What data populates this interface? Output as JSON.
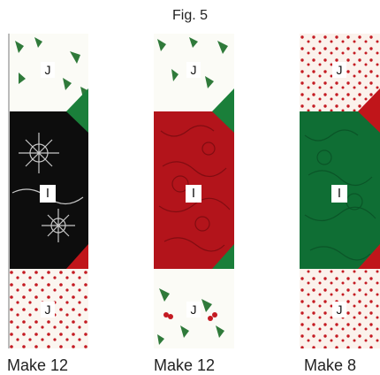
{
  "figure": {
    "title": "Fig. 5"
  },
  "strips": [
    {
      "top_label": "J",
      "center_label": "I",
      "bottom_label": "J",
      "caption": "Make 12",
      "colors": {
        "end_fabric": "#fbf6f0",
        "center_fabric": "#0d0d0d",
        "corner_top": "#1a7f3a",
        "corner_bottom": "#c0151a"
      }
    },
    {
      "top_label": "J",
      "center_label": "I",
      "bottom_label": "J",
      "caption": "Make 12",
      "colors": {
        "end_fabric": "#fbfbf6",
        "center_fabric": "#b3141b",
        "corner_top": "#1a7f3a",
        "corner_bottom": "#1a7f3a"
      }
    },
    {
      "top_label": "J",
      "center_label": "I",
      "bottom_label": "J",
      "caption": "Make 8",
      "colors": {
        "end_fabric": "#fbf2ec",
        "center_fabric": "#0f6e34",
        "corner_top": "#c0151a",
        "corner_bottom": "#c0151a"
      }
    }
  ]
}
